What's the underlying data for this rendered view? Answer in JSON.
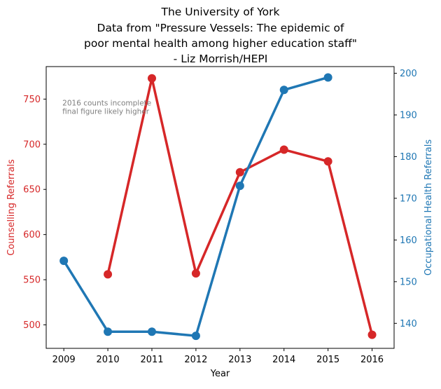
{
  "chart_data": {
    "type": "line",
    "title_lines": [
      "The University of York",
      "Data from \"Pressure Vessels: The epidemic of",
      "poor mental health among higher education staff\"",
      "- Liz Morrish/HEPI"
    ],
    "xlabel": "Year",
    "x_ticks": [
      "2009",
      "2010",
      "2011",
      "2012",
      "2013",
      "2014",
      "2015",
      "2016"
    ],
    "xlim": [
      2008.6,
      2016.5
    ],
    "y_left": {
      "label": "Counselling Referrals",
      "color": "#d62728",
      "ticks": [
        "500",
        "550",
        "600",
        "650",
        "700",
        "750"
      ],
      "tick_values": [
        500,
        550,
        600,
        650,
        700,
        750
      ],
      "ylim": [
        474,
        786
      ]
    },
    "y_right": {
      "label": "Occupational Health Referrals",
      "color": "#1f77b4",
      "ticks": [
        "140",
        "150",
        "160",
        "170",
        "180",
        "190",
        "200"
      ],
      "tick_values": [
        140,
        150,
        160,
        170,
        180,
        190,
        200
      ],
      "ylim": [
        134,
        201.6
      ]
    },
    "series": [
      {
        "name": "Counselling Referrals",
        "axis": "left",
        "color": "#d62728",
        "x": [
          2010,
          2011,
          2012,
          2013,
          2014,
          2015,
          2016
        ],
        "values": [
          556,
          773,
          557,
          669,
          694,
          681,
          489
        ]
      },
      {
        "name": "Occupational Health Referrals",
        "axis": "right",
        "color": "#1f77b4",
        "x": [
          2009,
          2010,
          2011,
          2012,
          2013,
          2014,
          2015
        ],
        "values": [
          155,
          138,
          138,
          137,
          173,
          196,
          199
        ]
      }
    ],
    "annotation_lines": [
      "2016 counts incomplete",
      "final figure likely higher"
    ],
    "annotation_anchor": {
      "x": 2009,
      "y": 740
    },
    "grid": false,
    "legend": "none"
  }
}
